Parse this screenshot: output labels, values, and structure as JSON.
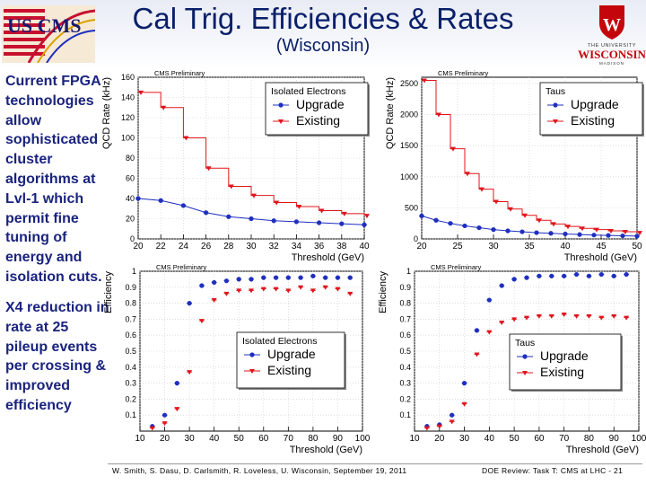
{
  "slide": {
    "title": "Cal Trig. Efficiencies & Rates",
    "subtitle": "(Wisconsin)",
    "logo_left_text": "US CMS",
    "logo_right_line1": "THE UNIVERSITY",
    "logo_right_line2": "WISCONSIN",
    "logo_right_line3": "MADISON",
    "logo_right_crest": "W",
    "bullet1": "Current FPGA technologies allow sophisticated cluster algorithms at Lvl-1 which permit fine tuning of energy and isolation cuts.",
    "bullet2": "X4 reduction in rate at 25 pileup events per crossing & improved efficiency",
    "footer_left": "W. Smith, S. Dasu, D. Carlsmith, R. Loveless, U. Wisconsin, September 19, 2011",
    "footer_right": "DOE Review: Task T: CMS at LHC - 21"
  },
  "colors": {
    "upgrade": "#1f2fbf",
    "existing": "#e0141b",
    "title": "#0a1f6a",
    "bullet": "#1a237e"
  },
  "chart_data": [
    {
      "id": "rate_electrons",
      "type": "line",
      "title": "",
      "banner": "CMS Preliminary",
      "legend_title": "Isolated Electrons",
      "xlabel": "Threshold (GeV)",
      "ylabel": "QCD Rate (kHz)",
      "xlim": [
        20,
        40
      ],
      "ylim": [
        0,
        160
      ],
      "xticks": [
        20,
        22,
        24,
        26,
        28,
        30,
        32,
        34,
        36,
        38,
        40
      ],
      "yticks": [
        0,
        20,
        40,
        60,
        80,
        100,
        120,
        140,
        160
      ],
      "grid": true,
      "legend_position": "top-right",
      "series": [
        {
          "name": "Upgrade",
          "style": "circle",
          "x": [
            20,
            22,
            24,
            26,
            28,
            30,
            32,
            34,
            36,
            38,
            40
          ],
          "y": [
            40,
            38,
            33,
            26,
            22,
            20,
            18,
            17,
            16,
            15,
            14
          ]
        },
        {
          "name": "Existing",
          "style": "step",
          "x": [
            20,
            22,
            24,
            26,
            28,
            30,
            32,
            34,
            36,
            38,
            40
          ],
          "y": [
            145,
            130,
            100,
            70,
            52,
            43,
            36,
            32,
            28,
            25,
            23
          ]
        }
      ]
    },
    {
      "id": "rate_taus",
      "type": "line",
      "title": "",
      "banner": "CMS Preliminary",
      "legend_title": "Taus",
      "xlabel": "Threshold (GeV)",
      "ylabel": "QCD Rate (kHz)",
      "xlim": [
        20,
        50
      ],
      "ylim": [
        0,
        2600
      ],
      "xticks": [
        20,
        25,
        30,
        35,
        40,
        45,
        50
      ],
      "yticks": [
        0,
        500,
        1000,
        1500,
        2000,
        2500
      ],
      "grid": true,
      "legend_position": "top-right",
      "series": [
        {
          "name": "Upgrade",
          "style": "circle",
          "x": [
            20,
            22,
            24,
            26,
            28,
            30,
            32,
            34,
            36,
            38,
            40,
            42,
            44,
            46,
            48,
            50
          ],
          "y": [
            370,
            300,
            250,
            210,
            180,
            150,
            130,
            115,
            100,
            90,
            80,
            70,
            62,
            56,
            50,
            45
          ]
        },
        {
          "name": "Existing",
          "style": "step",
          "x": [
            20,
            22,
            24,
            26,
            28,
            30,
            32,
            34,
            36,
            38,
            40,
            42,
            44,
            46,
            48,
            50
          ],
          "y": [
            2550,
            2000,
            1450,
            1050,
            800,
            600,
            480,
            380,
            300,
            240,
            200,
            170,
            150,
            130,
            115,
            100
          ]
        }
      ]
    },
    {
      "id": "eff_electrons",
      "type": "scatter",
      "title": "",
      "banner": "CMS Preliminary",
      "legend_title": "Isolated Electrons",
      "xlabel": "Threshold (GeV)",
      "ylabel": "Efficiency",
      "xlim": [
        10,
        100
      ],
      "ylim": [
        0,
        1
      ],
      "xticks": [
        10,
        20,
        30,
        40,
        50,
        60,
        70,
        80,
        90,
        100
      ],
      "yticks": [
        0.1,
        0.2,
        0.3,
        0.4,
        0.5,
        0.6,
        0.7,
        0.8,
        0.9,
        1
      ],
      "grid": true,
      "legend_position": "center",
      "series": [
        {
          "name": "Upgrade",
          "style": "circle",
          "x": [
            15,
            20,
            25,
            30,
            35,
            40,
            45,
            50,
            55,
            60,
            65,
            70,
            75,
            80,
            85,
            90,
            95
          ],
          "y": [
            0.03,
            0.1,
            0.3,
            0.8,
            0.91,
            0.93,
            0.94,
            0.95,
            0.95,
            0.96,
            0.96,
            0.96,
            0.96,
            0.97,
            0.96,
            0.96,
            0.96
          ]
        },
        {
          "name": "Existing",
          "style": "triangle",
          "x": [
            15,
            20,
            25,
            30,
            35,
            40,
            45,
            50,
            55,
            60,
            65,
            70,
            75,
            80,
            85,
            90,
            95
          ],
          "y": [
            0.02,
            0.05,
            0.14,
            0.37,
            0.69,
            0.82,
            0.86,
            0.88,
            0.88,
            0.89,
            0.89,
            0.88,
            0.9,
            0.88,
            0.9,
            0.89,
            0.86
          ]
        }
      ]
    },
    {
      "id": "eff_taus",
      "type": "scatter",
      "title": "",
      "banner": "CMS Preliminary",
      "legend_title": "Taus",
      "xlabel": "Threshold (GeV)",
      "ylabel": "Efficiency",
      "xlim": [
        10,
        100
      ],
      "ylim": [
        0,
        1
      ],
      "xticks": [
        10,
        20,
        30,
        40,
        50,
        60,
        70,
        80,
        90,
        100
      ],
      "yticks": [
        0.1,
        0.2,
        0.3,
        0.4,
        0.5,
        0.6,
        0.7,
        0.8,
        0.9,
        1
      ],
      "grid": true,
      "legend_position": "center",
      "series": [
        {
          "name": "Upgrade",
          "style": "circle",
          "x": [
            15,
            20,
            25,
            30,
            35,
            40,
            45,
            50,
            55,
            60,
            65,
            70,
            75,
            80,
            85,
            90,
            95
          ],
          "y": [
            0.03,
            0.04,
            0.1,
            0.3,
            0.63,
            0.82,
            0.91,
            0.95,
            0.96,
            0.97,
            0.97,
            0.97,
            0.98,
            0.97,
            0.98,
            0.97,
            0.98
          ]
        },
        {
          "name": "Existing",
          "style": "triangle",
          "x": [
            15,
            20,
            25,
            30,
            35,
            40,
            45,
            50,
            55,
            60,
            65,
            70,
            75,
            80,
            85,
            90,
            95
          ],
          "y": [
            0.02,
            0.03,
            0.06,
            0.17,
            0.48,
            0.62,
            0.68,
            0.7,
            0.71,
            0.72,
            0.72,
            0.73,
            0.72,
            0.72,
            0.71,
            0.72,
            0.71
          ]
        }
      ]
    }
  ]
}
